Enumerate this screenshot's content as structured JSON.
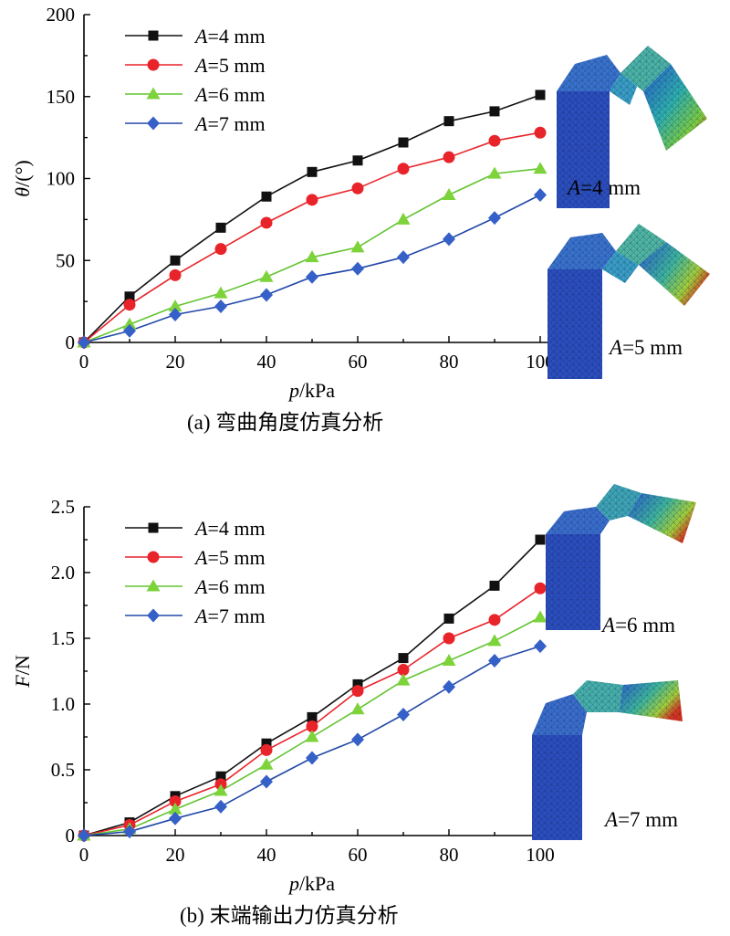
{
  "colors": {
    "s4": "#111111",
    "s5": "#e8242a",
    "s6": "#62c431",
    "s7": "#2248a8",
    "marker6": "#7dd33a",
    "marker7": "#3560c8"
  },
  "captions": {
    "a": "(a) 弯曲角度仿真分析",
    "b": "(b) 末端输出力仿真分析"
  },
  "sim_labels": {
    "a4": "A=4 mm",
    "a5": "A=5 mm",
    "a6": "A=6 mm",
    "a7": "A=7 mm"
  },
  "chart_data": [
    {
      "type": "line",
      "xlabel": "p/kPa",
      "ylabel": "θ/(°)",
      "xlim": [
        0,
        100
      ],
      "ylim": [
        0,
        200
      ],
      "xticks": [
        0,
        20,
        40,
        60,
        80,
        100
      ],
      "yticks": [
        0,
        50,
        100,
        150,
        200
      ],
      "grid": false,
      "legend": "top-left",
      "x": [
        0,
        10,
        20,
        30,
        40,
        50,
        60,
        70,
        80,
        90,
        100
      ],
      "series": [
        {
          "name": "A=4 mm",
          "marker": "square",
          "values": [
            0,
            28,
            50,
            70,
            89,
            104,
            111,
            122,
            135,
            141,
            151
          ]
        },
        {
          "name": "A=5 mm",
          "marker": "circle",
          "values": [
            0,
            23,
            41,
            57,
            73,
            87,
            94,
            106,
            113,
            123,
            128
          ]
        },
        {
          "name": "A=6 mm",
          "marker": "triangle",
          "values": [
            0,
            11,
            22,
            30,
            40,
            52,
            58,
            75,
            90,
            103,
            106
          ]
        },
        {
          "name": "A=7 mm",
          "marker": "diamond",
          "values": [
            0,
            7,
            17,
            22,
            29,
            40,
            45,
            52,
            63,
            76,
            90
          ]
        }
      ]
    },
    {
      "type": "line",
      "xlabel": "p/kPa",
      "ylabel": "F/N",
      "xlim": [
        0,
        100
      ],
      "ylim": [
        0,
        2.5
      ],
      "xticks": [
        0,
        20,
        40,
        60,
        80,
        100
      ],
      "yticks": [
        0,
        0.5,
        1.0,
        1.5,
        2.0,
        2.5
      ],
      "ytick_labels": [
        "0",
        "0.5",
        "1.0",
        "1.5",
        "2.0",
        "2.5"
      ],
      "grid": false,
      "legend": "top-left",
      "x": [
        0,
        10,
        20,
        30,
        40,
        50,
        60,
        70,
        80,
        90,
        100
      ],
      "series": [
        {
          "name": "A=4 mm",
          "marker": "square",
          "values": [
            0,
            0.1,
            0.3,
            0.45,
            0.7,
            0.9,
            1.15,
            1.35,
            1.65,
            1.9,
            2.25
          ]
        },
        {
          "name": "A=5 mm",
          "marker": "circle",
          "values": [
            0,
            0.08,
            0.26,
            0.39,
            0.65,
            0.83,
            1.1,
            1.26,
            1.5,
            1.64,
            1.88
          ]
        },
        {
          "name": "A=6 mm",
          "marker": "triangle",
          "values": [
            0,
            0.05,
            0.2,
            0.34,
            0.54,
            0.75,
            0.96,
            1.18,
            1.33,
            1.48,
            1.66
          ]
        },
        {
          "name": "A=7 mm",
          "marker": "diamond",
          "values": [
            0,
            0.03,
            0.13,
            0.22,
            0.41,
            0.59,
            0.73,
            0.92,
            1.13,
            1.33,
            1.44
          ]
        }
      ]
    }
  ]
}
